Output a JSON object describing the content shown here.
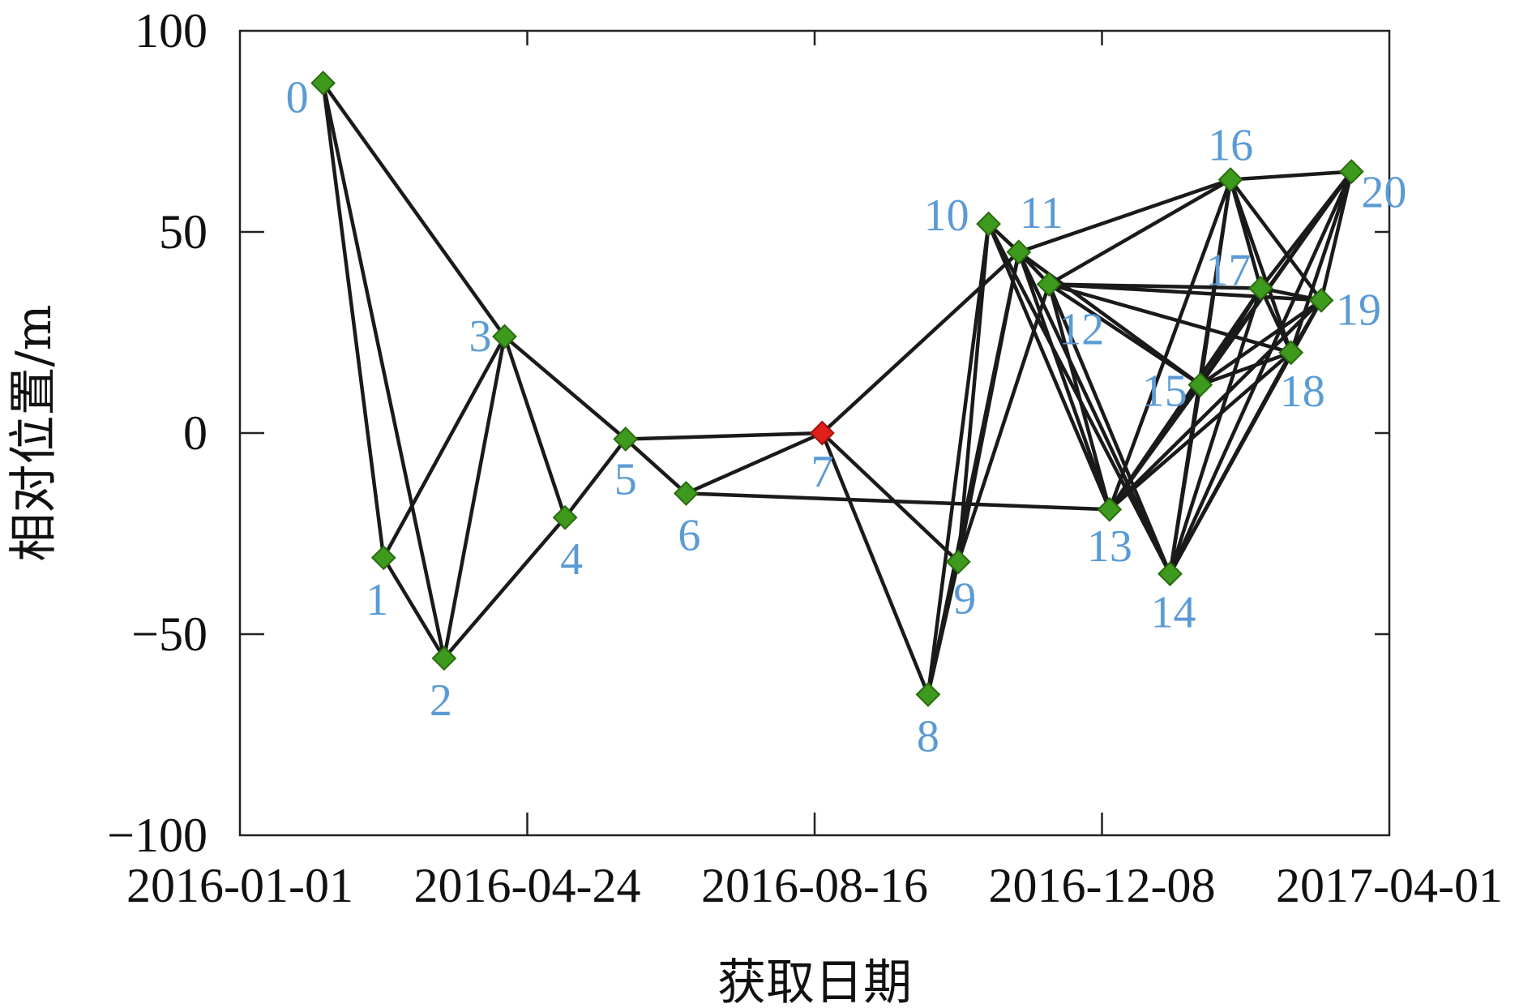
{
  "chart_data": {
    "type": "scatter",
    "xlabel": "获取日期",
    "ylabel": "相对位置/m",
    "xlim": [
      "2016-01-01",
      "2017-04-01"
    ],
    "ylim": [
      -100,
      100
    ],
    "x_ticks": [
      "2016-01-01",
      "2016-04-24",
      "2016-08-16",
      "2016-12-08",
      "2017-04-01"
    ],
    "y_ticks": [
      100,
      50,
      0,
      -50,
      -100
    ],
    "y_tick_labels": [
      "100",
      "50",
      "0",
      "−50",
      "−100"
    ],
    "grid": false,
    "colors": {
      "point": "#3d9a1c",
      "point_outline": "#2a6b10",
      "reference_point": "#e0201b",
      "edge": "#1a1a1a",
      "label": "#5b9bd5",
      "axis": "#222222"
    },
    "reference_point_id": "7",
    "points": [
      {
        "id": "0",
        "date": "2016-02-03",
        "y": 87
      },
      {
        "id": "1",
        "date": "2016-02-27",
        "y": -31
      },
      {
        "id": "2",
        "date": "2016-03-22",
        "y": -56
      },
      {
        "id": "3",
        "date": "2016-04-15",
        "y": 24
      },
      {
        "id": "4",
        "date": "2016-05-09",
        "y": -21
      },
      {
        "id": "5",
        "date": "2016-06-02",
        "y": -1.5
      },
      {
        "id": "6",
        "date": "2016-06-26",
        "y": -15
      },
      {
        "id": "7",
        "date": "2016-08-19",
        "y": 0
      },
      {
        "id": "8",
        "date": "2016-09-30",
        "y": -65
      },
      {
        "id": "9",
        "date": "2016-10-12",
        "y": -32
      },
      {
        "id": "10",
        "date": "2016-10-24",
        "y": 52
      },
      {
        "id": "11",
        "date": "2016-11-05",
        "y": 45
      },
      {
        "id": "12",
        "date": "2016-11-17",
        "y": 37
      },
      {
        "id": "13",
        "date": "2016-12-11",
        "y": -19
      },
      {
        "id": "14",
        "date": "2017-01-04",
        "y": -35
      },
      {
        "id": "15",
        "date": "2017-01-16",
        "y": 12
      },
      {
        "id": "16",
        "date": "2017-01-28",
        "y": 63
      },
      {
        "id": "17",
        "date": "2017-02-09",
        "y": 36
      },
      {
        "id": "18",
        "date": "2017-02-21",
        "y": 20
      },
      {
        "id": "19",
        "date": "2017-03-05",
        "y": 33
      },
      {
        "id": "20",
        "date": "2017-03-17",
        "y": 65
      }
    ],
    "edges": [
      [
        "0",
        "1"
      ],
      [
        "0",
        "2"
      ],
      [
        "0",
        "3"
      ],
      [
        "1",
        "2"
      ],
      [
        "1",
        "3"
      ],
      [
        "2",
        "3"
      ],
      [
        "2",
        "4"
      ],
      [
        "3",
        "4"
      ],
      [
        "3",
        "5"
      ],
      [
        "4",
        "5"
      ],
      [
        "5",
        "6"
      ],
      [
        "5",
        "7"
      ],
      [
        "6",
        "7"
      ],
      [
        "6",
        "13"
      ],
      [
        "7",
        "8"
      ],
      [
        "7",
        "9"
      ],
      [
        "7",
        "11"
      ],
      [
        "8",
        "9"
      ],
      [
        "8",
        "10"
      ],
      [
        "8",
        "11"
      ],
      [
        "9",
        "10"
      ],
      [
        "9",
        "11"
      ],
      [
        "9",
        "12"
      ],
      [
        "10",
        "11"
      ],
      [
        "10",
        "13"
      ],
      [
        "10",
        "14"
      ],
      [
        "11",
        "12"
      ],
      [
        "11",
        "13"
      ],
      [
        "11",
        "14"
      ],
      [
        "11",
        "15"
      ],
      [
        "11",
        "16"
      ],
      [
        "12",
        "13"
      ],
      [
        "12",
        "14"
      ],
      [
        "12",
        "15"
      ],
      [
        "12",
        "16"
      ],
      [
        "12",
        "17"
      ],
      [
        "12",
        "18"
      ],
      [
        "12",
        "19"
      ],
      [
        "13",
        "15"
      ],
      [
        "13",
        "16"
      ],
      [
        "13",
        "17"
      ],
      [
        "13",
        "18"
      ],
      [
        "13",
        "19"
      ],
      [
        "13",
        "20"
      ],
      [
        "14",
        "15"
      ],
      [
        "14",
        "16"
      ],
      [
        "14",
        "17"
      ],
      [
        "14",
        "18"
      ],
      [
        "14",
        "19"
      ],
      [
        "14",
        "20"
      ],
      [
        "15",
        "16"
      ],
      [
        "15",
        "17"
      ],
      [
        "15",
        "18"
      ],
      [
        "15",
        "19"
      ],
      [
        "15",
        "20"
      ],
      [
        "16",
        "17"
      ],
      [
        "16",
        "18"
      ],
      [
        "16",
        "19"
      ],
      [
        "16",
        "20"
      ],
      [
        "17",
        "18"
      ],
      [
        "17",
        "19"
      ],
      [
        "17",
        "20"
      ],
      [
        "18",
        "19"
      ],
      [
        "18",
        "20"
      ],
      [
        "19",
        "20"
      ]
    ]
  }
}
